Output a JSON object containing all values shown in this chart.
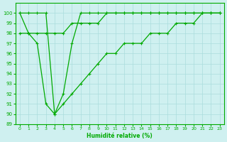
{
  "xlabel": "Humidité relative (%)",
  "background_color": "#cff0f0",
  "grid_color": "#aadddd",
  "line_color": "#00aa00",
  "xlim": [
    -0.5,
    23.5
  ],
  "ylim": [
    89,
    101
  ],
  "yticks": [
    89,
    90,
    91,
    92,
    93,
    94,
    95,
    96,
    97,
    98,
    99,
    100
  ],
  "xticks": [
    0,
    1,
    2,
    3,
    4,
    5,
    6,
    7,
    8,
    9,
    10,
    11,
    12,
    13,
    14,
    15,
    16,
    17,
    18,
    19,
    20,
    21,
    22,
    23
  ],
  "line1_x": [
    0,
    1,
    2,
    3,
    4,
    5,
    6,
    7,
    8,
    9,
    10,
    11,
    12,
    13,
    14,
    15,
    16,
    17,
    18,
    19,
    20,
    21,
    22,
    23
  ],
  "line1_y": [
    100,
    98,
    97,
    91,
    90,
    92,
    97,
    100,
    100,
    100,
    100,
    100,
    100,
    100,
    100,
    100,
    100,
    100,
    100,
    100,
    100,
    100,
    100,
    100
  ],
  "line2_x": [
    0,
    1,
    2,
    3,
    4,
    5,
    6,
    7,
    8,
    9,
    10,
    11,
    12,
    13,
    14,
    15,
    16,
    17,
    18,
    19,
    20,
    21,
    22,
    23
  ],
  "line2_y": [
    98,
    98,
    98,
    98,
    98,
    98,
    99,
    99,
    99,
    99,
    100,
    100,
    100,
    100,
    100,
    100,
    100,
    100,
    100,
    100,
    100,
    100,
    100,
    100
  ],
  "line3_x": [
    0,
    1,
    2,
    3,
    4,
    5,
    6,
    7,
    8,
    9,
    10,
    11,
    12,
    13,
    14,
    15,
    16,
    17,
    18,
    19,
    20,
    21,
    22,
    23
  ],
  "line3_y": [
    100,
    100,
    100,
    100,
    90,
    91,
    92,
    93,
    94,
    95,
    96,
    96,
    97,
    97,
    97,
    98,
    98,
    98,
    99,
    99,
    99,
    100,
    100,
    100
  ]
}
